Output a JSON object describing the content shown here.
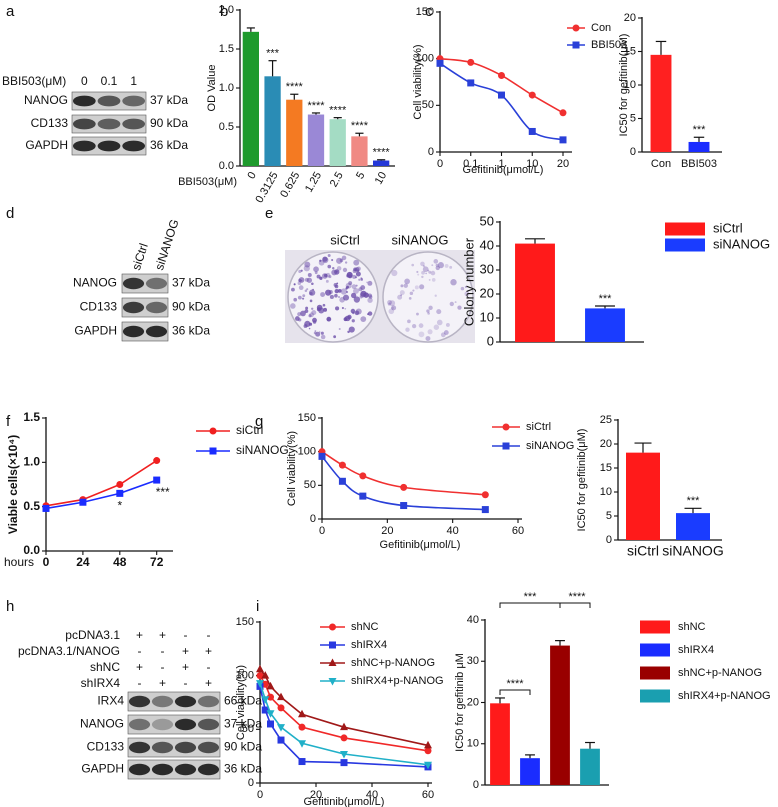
{
  "panels": [
    "a",
    "b",
    "c",
    "d",
    "e",
    "f",
    "g",
    "h",
    "i"
  ],
  "blots": [
    {
      "treatment": "BBI503(μM)",
      "lanes": [
        "0",
        "0.1",
        "1"
      ],
      "proteins": [
        "NANOG",
        "CD133",
        "GAPDH"
      ],
      "sizes": [
        "37 kDa",
        "90 kDa",
        "36 kDa"
      ]
    },
    {
      "lanes": [
        "siCtrl",
        "siNANOG"
      ],
      "proteins": [
        "NANOG",
        "CD133",
        "GAPDH"
      ],
      "sizes": [
        "37 kDa",
        "90 kDa",
        "36 kDa"
      ]
    },
    {
      "conditions": [
        {
          "name": "pcDNA3.1",
          "signs": [
            "+",
            "+",
            "-",
            "-"
          ]
        },
        {
          "name": "pcDNA3.1/NANOG",
          "signs": [
            "-",
            "-",
            "+",
            "+"
          ]
        },
        {
          "name": "shNC",
          "signs": [
            "+",
            "-",
            "+",
            "-"
          ]
        },
        {
          "name": "shIRX4",
          "signs": [
            "-",
            "+",
            "-",
            "+"
          ]
        }
      ],
      "proteins": [
        "IRX4",
        "NANOG",
        "CD133",
        "GAPDH"
      ],
      "sizes": [
        "66 kDa",
        "37 kDa",
        "90 kDa",
        "36 kDa"
      ]
    }
  ],
  "colony_image": {
    "labels": [
      "siCtrl",
      "siNANOG"
    ]
  },
  "chart_data": [
    {
      "type": "bar",
      "ylabel": "OD Value",
      "xlabel": "BBI503(μM)",
      "categories": [
        "0",
        "0.3125",
        "0.625",
        "1.25",
        "2.5",
        "5",
        "10"
      ],
      "values": [
        1.72,
        1.15,
        0.85,
        0.66,
        0.6,
        0.38,
        0.07
      ],
      "errors": [
        0.05,
        0.2,
        0.07,
        0.02,
        0.02,
        0.04,
        0.01
      ],
      "colors": [
        "#1e9a2c",
        "#2a8cb5",
        "#f47a22",
        "#9a88d6",
        "#a4dcc4",
        "#f08a84",
        "#2438d8"
      ],
      "annotations": [
        null,
        "***",
        "****",
        "****",
        "****",
        "****",
        "****"
      ],
      "ylim": [
        0,
        2
      ],
      "yticks": [
        {
          "value": 0,
          "label": "0.0"
        },
        0.5,
        {
          "value": 1,
          "label": "1.0"
        },
        1.5,
        {
          "value": 2,
          "label": "2.0"
        }
      ]
    },
    {
      "type": "line",
      "ylabel": "Cell viability(%)",
      "xlabel": "Gefitinib(μmol/L)",
      "categories": [
        "0",
        "0.1",
        "1",
        "10",
        "20"
      ],
      "smooth": true,
      "legend": "right",
      "series": [
        {
          "name": "Con",
          "color": "#f03030",
          "marker": "circle",
          "values": [
            100,
            96,
            82,
            61,
            42
          ]
        },
        {
          "name": "BBI503",
          "color": "#2a40d8",
          "marker": "square",
          "values": [
            95,
            74,
            61,
            22,
            13
          ]
        }
      ],
      "ylim": [
        0,
        150
      ],
      "yticks": [
        0,
        50,
        100,
        150
      ]
    },
    {
      "type": "bar",
      "ylabel": "IC50 for gefitinib(μM)",
      "categories": [
        "Con",
        "BBI503"
      ],
      "values": [
        14.5,
        1.5
      ],
      "errors": [
        2,
        0.7
      ],
      "colors": [
        "#ff2020",
        "#1a2cff"
      ],
      "annotations": [
        null,
        "***"
      ],
      "ylim": [
        0,
        20
      ],
      "yticks": [
        0,
        5,
        10,
        15,
        20
      ]
    },
    {
      "type": "bar",
      "ylabel": "Colony number",
      "legend": "right",
      "series": [
        {
          "name": "siCtrl",
          "color": "#ff1a1a",
          "values": [
            41
          ],
          "errors": [
            2
          ]
        },
        {
          "name": "siNANOG",
          "color": "#1a3cff",
          "values": [
            14
          ],
          "errors": [
            1
          ],
          "annotation": "***"
        }
      ],
      "ylim": [
        0,
        50
      ],
      "yticks": [
        0,
        10,
        20,
        30,
        40,
        50
      ]
    },
    {
      "type": "line",
      "ylabel": "Viable cells(×10⁴)",
      "xlabel": "hours",
      "legend": "right",
      "x": [
        0,
        24,
        48,
        72
      ],
      "xlim": [
        0,
        80
      ],
      "xticks": [
        0,
        24,
        48,
        72
      ],
      "series": [
        {
          "name": "siCtrl",
          "color": "#f02020",
          "marker": "circle",
          "values": [
            0.51,
            0.58,
            0.75,
            1.02
          ]
        },
        {
          "name": "siNANOG",
          "color": "#1a2cff",
          "marker": "square",
          "values": [
            0.48,
            0.55,
            0.65,
            0.8
          ],
          "annotations": [
            null,
            null,
            "*",
            "***"
          ]
        }
      ],
      "ylim": [
        0,
        1.5
      ],
      "yticks": [
        {
          "value": 0,
          "label": "0.0"
        },
        0.5,
        {
          "value": 1,
          "label": "1.0"
        },
        1.5
      ]
    },
    {
      "type": "line",
      "ylabel": "Cell viability(%)",
      "xlabel": "Gefitinib(μmol/L)",
      "smooth": true,
      "legend": "right",
      "x": [
        0,
        6.25,
        12.5,
        25,
        50
      ],
      "xlim": [
        0,
        60
      ],
      "xticks": [
        0,
        20,
        40,
        60
      ],
      "series": [
        {
          "name": "siCtrl",
          "color": "#f03030",
          "marker": "circle",
          "values": [
            100,
            80,
            64,
            47,
            36
          ]
        },
        {
          "name": "siNANOG",
          "color": "#2a40d8",
          "marker": "square",
          "values": [
            93,
            56,
            34,
            20,
            14
          ]
        }
      ],
      "ylim": [
        0,
        150
      ],
      "yticks": [
        0,
        50,
        100,
        150
      ]
    },
    {
      "type": "bar",
      "ylabel": "IC50 for gefitinib(μM)",
      "categories": [
        "siCtrl",
        "siNANOG"
      ],
      "values": [
        18.2,
        5.6
      ],
      "errors": [
        2,
        1
      ],
      "colors": [
        "#ff1a1a",
        "#1a3cff"
      ],
      "annotations": [
        null,
        "***"
      ],
      "ylim": [
        0,
        25
      ],
      "yticks": [
        0,
        5,
        10,
        15,
        20,
        25
      ]
    },
    {
      "type": "line",
      "ylabel": "Cell viability(%)",
      "xlabel": "Gefitinib(μmol/L)",
      "legend": "right",
      "x": [
        0,
        1.875,
        3.75,
        7.5,
        15,
        30,
        60
      ],
      "xlim": [
        0,
        60
      ],
      "xticks": [
        0,
        20,
        40,
        60
      ],
      "series": [
        {
          "name": "shNC",
          "color": "#f02828",
          "marker": "circle",
          "values": [
            100,
            92,
            80,
            70,
            52,
            42,
            30
          ]
        },
        {
          "name": "shIRX4",
          "color": "#2838e0",
          "marker": "square",
          "values": [
            90,
            68,
            55,
            40,
            20,
            19,
            15
          ]
        },
        {
          "name": "shNC+p-NANOG",
          "color": "#a01818",
          "marker": "triangle",
          "values": [
            106,
            100,
            90,
            80,
            64,
            52,
            35
          ]
        },
        {
          "name": "shIRX4+p-NANOG",
          "color": "#20b0c8",
          "marker": "triangle-down",
          "values": [
            93,
            78,
            65,
            52,
            37,
            27,
            17
          ]
        }
      ],
      "ylim": [
        0,
        150
      ],
      "yticks": [
        0,
        50,
        100,
        150
      ]
    },
    {
      "type": "bar",
      "ylabel": "IC50 for gefitinib  μM",
      "legend": "right",
      "series": [
        {
          "name": "shNC",
          "color": "#ff1a1a",
          "values": [
            19.8
          ],
          "errors": [
            1.3
          ]
        },
        {
          "name": "shIRX4",
          "color": "#1a2cff",
          "values": [
            6.5
          ],
          "errors": [
            0.8
          ]
        },
        {
          "name": "shNC+p-NANOG",
          "color": "#990000",
          "values": [
            33.8
          ],
          "errors": [
            1.2
          ]
        },
        {
          "name": "shIRX4+p-NANOG",
          "color": "#1a9fb0",
          "values": [
            8.8
          ],
          "errors": [
            1.5
          ]
        }
      ],
      "significance": [
        "****",
        "***",
        "****"
      ],
      "ylim": [
        0,
        40
      ],
      "yticks": [
        0,
        10,
        20,
        30,
        40
      ]
    }
  ]
}
